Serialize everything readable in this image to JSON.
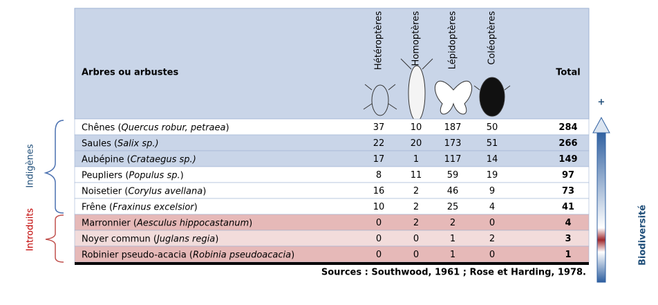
{
  "header": {
    "title": "Arbres ou arbustes",
    "columns": [
      "Hétéroptères",
      "Homoptères",
      "Lépidoptères",
      "Coléoptères"
    ],
    "total": "Total"
  },
  "rows": [
    {
      "name": [
        "Chênes (",
        "Quercus robur, petraea",
        ")"
      ],
      "values": [
        37,
        10,
        187,
        50
      ],
      "total": 284
    },
    {
      "name": [
        "Saules (",
        "Salix sp.)"
      ],
      "values": [
        22,
        20,
        173,
        51
      ],
      "total": 266
    },
    {
      "name": [
        "Aubépine (",
        "Crataegus sp.)"
      ],
      "values": [
        17,
        1,
        117,
        14
      ],
      "total": 149
    },
    {
      "name": [
        "Peupliers (",
        "Populus sp.",
        ")"
      ],
      "values": [
        8,
        11,
        59,
        19
      ],
      "total": 97
    },
    {
      "name": [
        "Noisetier (",
        "Corylus avellana",
        ")"
      ],
      "values": [
        16,
        2,
        46,
        9
      ],
      "total": 73
    },
    {
      "name": [
        "Frêne (",
        "Fraxinus excelsior",
        ")"
      ],
      "values": [
        10,
        2,
        25,
        4
      ],
      "total": 41
    },
    {
      "name": [
        "Marronnier (",
        "Aesculus hippocastanum",
        ")"
      ],
      "values": [
        0,
        2,
        2,
        0
      ],
      "total": 4
    },
    {
      "name": [
        "Noyer commun (",
        "Juglans regia",
        ")"
      ],
      "values": [
        0,
        0,
        1,
        2
      ],
      "total": 3
    },
    {
      "name": [
        "Robinier pseudo-acacia (",
        "Robinia pseudoacacia",
        ")"
      ],
      "values": [
        0,
        0,
        1,
        0
      ],
      "total": 1
    }
  ],
  "groups": {
    "native": "Indigènes",
    "introduced": "Introduits"
  },
  "scale": {
    "plus": "+",
    "label": "Biodiversité"
  },
  "sources": "Sources : Southwood, 1961 ; Rose et Harding, 1978."
}
